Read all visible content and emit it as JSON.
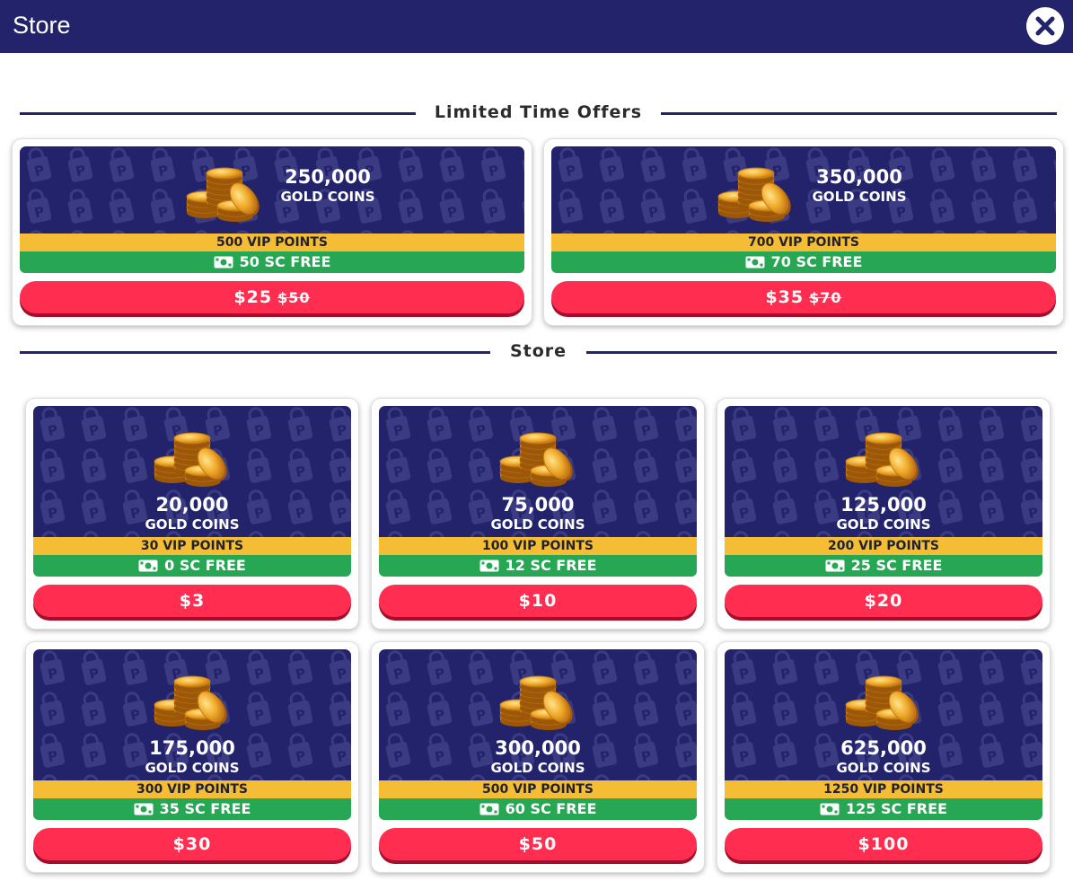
{
  "header": {
    "title": "Store"
  },
  "sections": {
    "limited": "Limited Time Offers",
    "store": "Store"
  },
  "limited_offers": [
    {
      "amount": "250,000",
      "unit": "GOLD COINS",
      "vip": "500 VIP POINTS",
      "sc": "50 SC FREE",
      "price": "$25",
      "old_price": "$50"
    },
    {
      "amount": "350,000",
      "unit": "GOLD COINS",
      "vip": "700 VIP POINTS",
      "sc": "70 SC FREE",
      "price": "$35",
      "old_price": "$70"
    }
  ],
  "store_items": [
    {
      "amount": "20,000",
      "unit": "GOLD COINS",
      "vip": "30 VIP POINTS",
      "sc": "0 SC FREE",
      "price": "$3"
    },
    {
      "amount": "75,000",
      "unit": "GOLD COINS",
      "vip": "100 VIP POINTS",
      "sc": "12 SC FREE",
      "price": "$10"
    },
    {
      "amount": "125,000",
      "unit": "GOLD COINS",
      "vip": "200 VIP POINTS",
      "sc": "25 SC FREE",
      "price": "$20"
    },
    {
      "amount": "175,000",
      "unit": "GOLD COINS",
      "vip": "300 VIP POINTS",
      "sc": "35 SC FREE",
      "price": "$30"
    },
    {
      "amount": "300,000",
      "unit": "GOLD COINS",
      "vip": "500 VIP POINTS",
      "sc": "60 SC FREE",
      "price": "$50"
    },
    {
      "amount": "625,000",
      "unit": "GOLD COINS",
      "vip": "1250 VIP POINTS",
      "sc": "125 SC FREE",
      "price": "$100"
    }
  ],
  "icons": {
    "close": "close-icon",
    "coins": "gold-coins-icon",
    "bill": "cash-bill-icon",
    "pattern": "p-bag-pattern"
  },
  "colors": {
    "navy": "#22236b",
    "yellow": "#f5bc36",
    "green": "#27a654",
    "red": "#ff2e50"
  }
}
